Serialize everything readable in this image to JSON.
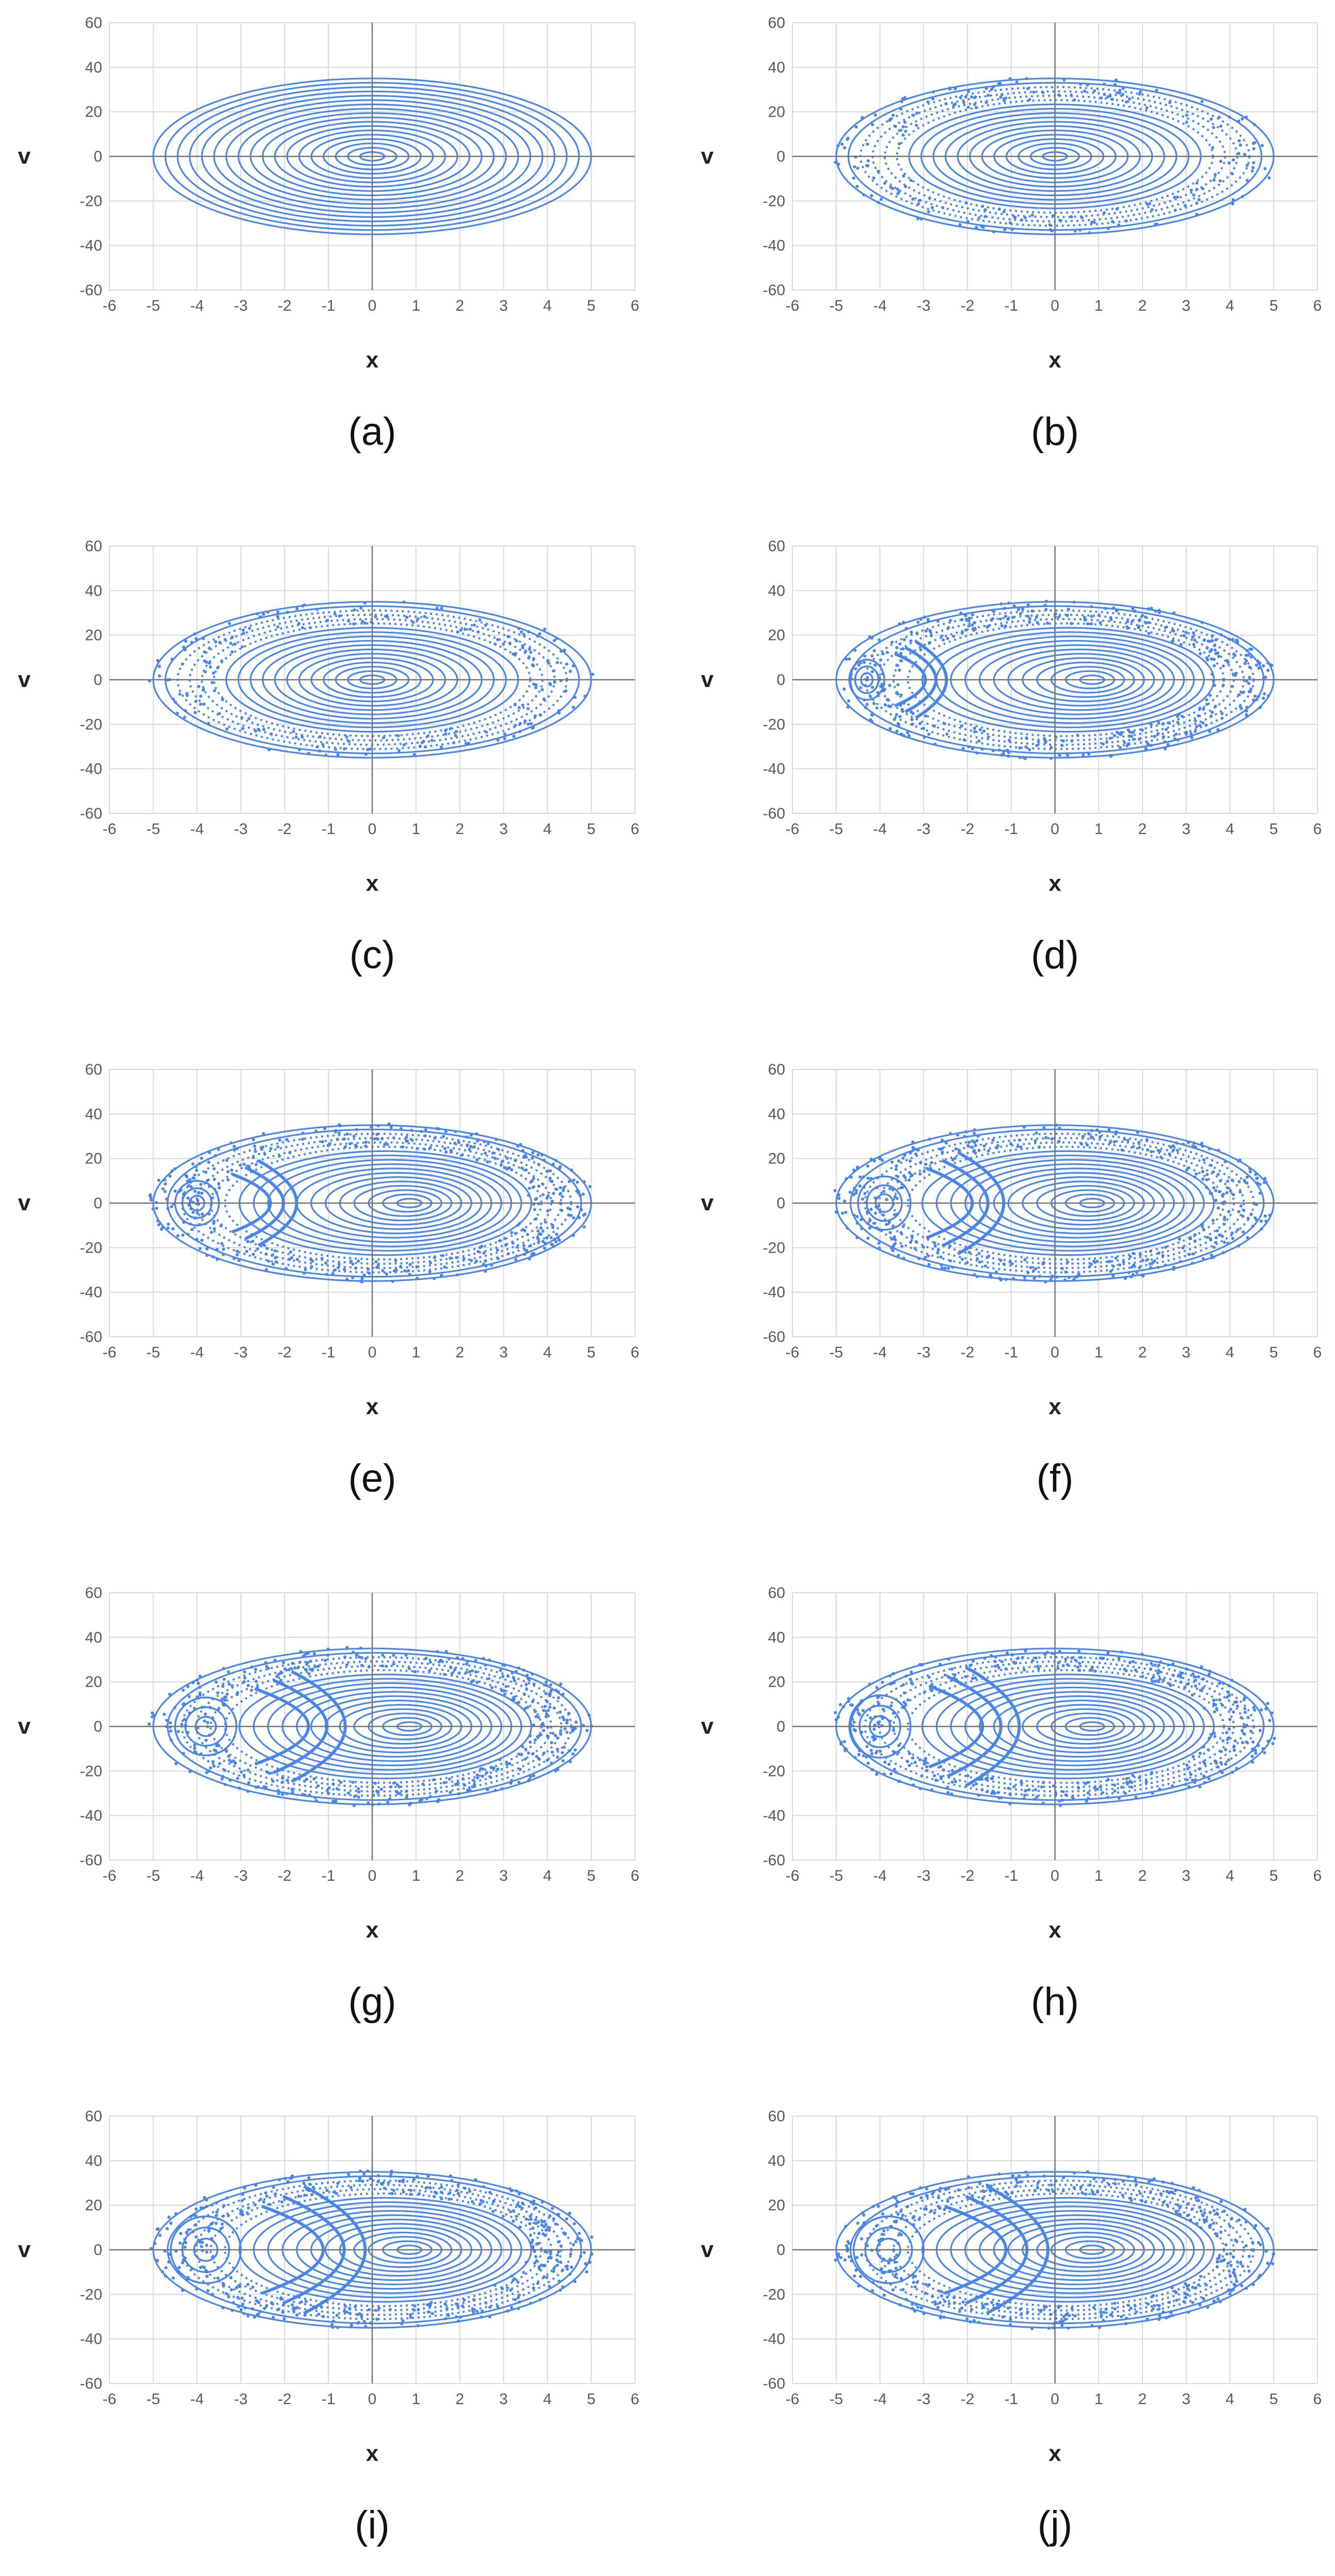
{
  "figure": {
    "point_color": "#4a86e8",
    "grid_color": "#d9d9d9",
    "axis_color": "#757575",
    "text_color": "#595959"
  },
  "chart_data": [
    {
      "type": "scatter",
      "panel_label": "(a)",
      "xlabel": "x",
      "ylabel": "v",
      "xlim": [
        -6,
        6
      ],
      "ylim": [
        -60,
        60
      ],
      "x_ticks": [
        -6,
        -5,
        -4,
        -3,
        -2,
        -1,
        0,
        1,
        2,
        3,
        4,
        5,
        6
      ],
      "y_ticks": [
        -60,
        -40,
        -20,
        0,
        20,
        40,
        60
      ],
      "grid": true,
      "x_extent": [
        -5,
        5
      ],
      "v_extent": [
        -35,
        35
      ],
      "pattern": "concentric-ellipses",
      "islands": []
    },
    {
      "type": "scatter",
      "panel_label": "(b)",
      "xlabel": "x",
      "ylabel": "v",
      "xlim": [
        -6,
        6
      ],
      "ylim": [
        -60,
        60
      ],
      "x_ticks": [
        -6,
        -5,
        -4,
        -3,
        -2,
        -1,
        0,
        1,
        2,
        3,
        4,
        5,
        6
      ],
      "y_ticks": [
        -60,
        -40,
        -20,
        0,
        20,
        40,
        60
      ],
      "grid": true,
      "x_extent": [
        -5,
        5
      ],
      "v_extent": [
        -35,
        35
      ],
      "pattern": "concentric-ellipses-with-scattered-band",
      "islands": []
    },
    {
      "type": "scatter",
      "panel_label": "(c)",
      "xlabel": "x",
      "ylabel": "v",
      "xlim": [
        -6,
        6
      ],
      "ylim": [
        -60,
        60
      ],
      "x_ticks": [
        -6,
        -5,
        -4,
        -3,
        -2,
        -1,
        0,
        1,
        2,
        3,
        4,
        5,
        6
      ],
      "y_ticks": [
        -60,
        -40,
        -20,
        0,
        20,
        40,
        60
      ],
      "grid": true,
      "x_extent": [
        -5,
        5
      ],
      "v_extent": [
        -35,
        35
      ],
      "pattern": "concentric-ellipses-with-scattered-band",
      "islands": []
    },
    {
      "type": "scatter",
      "panel_label": "(d)",
      "xlabel": "x",
      "ylabel": "v",
      "xlim": [
        -6,
        6
      ],
      "ylim": [
        -60,
        60
      ],
      "x_ticks": [
        -6,
        -5,
        -4,
        -3,
        -2,
        -1,
        0,
        1,
        2,
        3,
        4,
        5,
        6
      ],
      "y_ticks": [
        -60,
        -40,
        -20,
        0,
        20,
        40,
        60
      ],
      "grid": true,
      "x_extent": [
        -5,
        5
      ],
      "v_extent": [
        -35,
        35
      ],
      "pattern": "ellipses-with-islands",
      "islands": [
        {
          "x": -4.3,
          "v": 0,
          "rx": 0.4,
          "rv": 9
        }
      ]
    },
    {
      "type": "scatter",
      "panel_label": "(e)",
      "xlabel": "x",
      "ylabel": "v",
      "xlim": [
        -6,
        6
      ],
      "ylim": [
        -60,
        60
      ],
      "x_ticks": [
        -6,
        -5,
        -4,
        -3,
        -2,
        -1,
        0,
        1,
        2,
        3,
        4,
        5,
        6
      ],
      "y_ticks": [
        -60,
        -40,
        -20,
        0,
        20,
        40,
        60
      ],
      "grid": true,
      "x_extent": [
        -5,
        5
      ],
      "v_extent": [
        -35,
        35
      ],
      "pattern": "ellipses-with-islands",
      "islands": [
        {
          "x": -4.0,
          "v": 0,
          "rx": 0.5,
          "rv": 10
        }
      ]
    },
    {
      "type": "scatter",
      "panel_label": "(f)",
      "xlabel": "x",
      "ylabel": "v",
      "xlim": [
        -6,
        6
      ],
      "ylim": [
        -60,
        60
      ],
      "x_ticks": [
        -6,
        -5,
        -4,
        -3,
        -2,
        -1,
        0,
        1,
        2,
        3,
        4,
        5,
        6
      ],
      "y_ticks": [
        -60,
        -40,
        -20,
        0,
        20,
        40,
        60
      ],
      "grid": true,
      "x_extent": [
        -5,
        5
      ],
      "v_extent": [
        -35,
        35
      ],
      "pattern": "ellipses-with-islands",
      "islands": [
        {
          "x": -3.9,
          "v": 0,
          "rx": 0.6,
          "rv": 12
        }
      ]
    },
    {
      "type": "scatter",
      "panel_label": "(g)",
      "xlabel": "x",
      "ylabel": "v",
      "xlim": [
        -6,
        6
      ],
      "ylim": [
        -60,
        60
      ],
      "x_ticks": [
        -6,
        -5,
        -4,
        -3,
        -2,
        -1,
        0,
        1,
        2,
        3,
        4,
        5,
        6
      ],
      "y_ticks": [
        -60,
        -40,
        -20,
        0,
        20,
        40,
        60
      ],
      "grid": true,
      "x_extent": [
        -5,
        5
      ],
      "v_extent": [
        -35,
        35
      ],
      "pattern": "ellipses-with-islands",
      "islands": [
        {
          "x": -3.8,
          "v": 0,
          "rx": 0.7,
          "rv": 13
        }
      ]
    },
    {
      "type": "scatter",
      "panel_label": "(h)",
      "xlabel": "x",
      "ylabel": "v",
      "xlim": [
        -6,
        6
      ],
      "ylim": [
        -60,
        60
      ],
      "x_ticks": [
        -6,
        -5,
        -4,
        -3,
        -2,
        -1,
        0,
        1,
        2,
        3,
        4,
        5,
        6
      ],
      "y_ticks": [
        -60,
        -40,
        -20,
        0,
        20,
        40,
        60
      ],
      "grid": true,
      "x_extent": [
        -5,
        5
      ],
      "v_extent": [
        -35,
        35
      ],
      "pattern": "ellipses-with-islands",
      "islands": [
        {
          "x": -4.0,
          "v": 0,
          "rx": 0.7,
          "rv": 14
        }
      ]
    },
    {
      "type": "scatter",
      "panel_label": "(i)",
      "xlabel": "x",
      "ylabel": "v",
      "xlim": [
        -6,
        6
      ],
      "ylim": [
        -60,
        60
      ],
      "x_ticks": [
        -6,
        -5,
        -4,
        -3,
        -2,
        -1,
        0,
        1,
        2,
        3,
        4,
        5,
        6
      ],
      "y_ticks": [
        -60,
        -40,
        -20,
        0,
        20,
        40,
        60
      ],
      "grid": true,
      "x_extent": [
        -5,
        5
      ],
      "v_extent": [
        -35,
        35
      ],
      "pattern": "ellipses-with-islands",
      "islands": [
        {
          "x": -3.8,
          "v": 0,
          "rx": 0.8,
          "rv": 15
        }
      ]
    },
    {
      "type": "scatter",
      "panel_label": "(j)",
      "xlabel": "x",
      "ylabel": "v",
      "xlim": [
        -6,
        6
      ],
      "ylim": [
        -60,
        60
      ],
      "x_ticks": [
        -6,
        -5,
        -4,
        -3,
        -2,
        -1,
        0,
        1,
        2,
        3,
        4,
        5,
        6
      ],
      "y_ticks": [
        -60,
        -40,
        -20,
        0,
        20,
        40,
        60
      ],
      "grid": true,
      "x_extent": [
        -5,
        5
      ],
      "v_extent": [
        -35,
        35
      ],
      "pattern": "ellipses-with-islands",
      "islands": [
        {
          "x": -3.8,
          "v": 0,
          "rx": 0.8,
          "rv": 15
        }
      ]
    }
  ]
}
